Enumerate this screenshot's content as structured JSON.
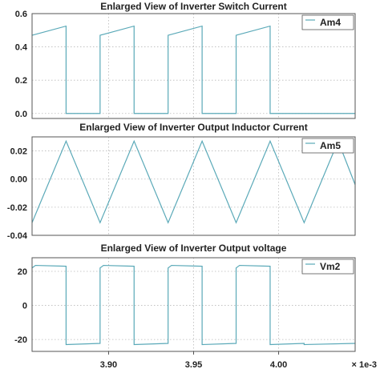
{
  "style": {
    "trace_color": "#5aa9b8",
    "grid_color": "#b9b9b9",
    "frame_color": "#555555"
  },
  "x_axis": {
    "range": [
      0.003855,
      0.004045
    ],
    "ticks": [
      0.0039,
      0.00395,
      0.004
    ],
    "tick_labels": [
      "3.90",
      "3.95",
      "4.00"
    ],
    "scale_label": "× 1e-3"
  },
  "chart_data": [
    {
      "type": "line",
      "title": "Enlarged View of Inverter Switch Current",
      "ylim": [
        -0.03,
        0.6
      ],
      "yticks": [
        0.0,
        0.2,
        0.4,
        0.6
      ],
      "ytick_labels": [
        "0.0",
        "0.2",
        "0.4",
        "0.6"
      ],
      "grid": true,
      "legend": "top-right",
      "series": [
        {
          "name": "Am4",
          "x": [
            0.003855,
            0.003875,
            0.003875,
            0.003875,
            0.003895,
            0.003895,
            0.003895,
            0.003915,
            0.003915,
            0.003915,
            0.003935,
            0.003935,
            0.003935,
            0.003955,
            0.003955,
            0.003955,
            0.003975,
            0.003975,
            0.003975,
            0.003995,
            0.003995,
            0.003995,
            0.004015,
            0.004015,
            0.004015,
            0.004045
          ],
          "y": [
            0.47,
            0.525,
            0.525,
            0.0,
            0.0,
            0.0,
            0.47,
            0.525,
            0.525,
            0.0,
            0.0,
            0.0,
            0.47,
            0.525,
            0.525,
            0.0,
            0.0,
            0.0,
            0.47,
            0.525,
            0.525,
            0.0,
            0.0,
            0.0,
            0.0,
            0.0
          ]
        }
      ]
    },
    {
      "type": "line",
      "title": "Enlarged View of Inverter Output Inductor Current",
      "ylim": [
        -0.04,
        0.03
      ],
      "yticks": [
        -0.04,
        -0.02,
        0.0,
        0.02
      ],
      "ytick_labels": [
        "-0.04",
        "-0.02",
        "0.00",
        "0.02"
      ],
      "grid": true,
      "legend": "top-right",
      "series": [
        {
          "name": "Am5",
          "x": [
            0.003855,
            0.003875,
            0.003895,
            0.003915,
            0.003935,
            0.003955,
            0.003975,
            0.003995,
            0.004015,
            0.004035,
            0.004045
          ],
          "y": [
            -0.031,
            0.027,
            -0.031,
            0.027,
            -0.031,
            0.027,
            -0.031,
            0.027,
            -0.031,
            0.027,
            -0.004
          ]
        }
      ]
    },
    {
      "type": "line",
      "title": "Enlarged View of Inverter Output voltage",
      "ylim": [
        -27,
        28
      ],
      "yticks": [
        -20,
        0,
        20
      ],
      "ytick_labels": [
        "-20",
        "0",
        "20"
      ],
      "grid": true,
      "legend": "top-right",
      "series": [
        {
          "name": "Vm2",
          "x": [
            0.003855,
            0.003857,
            0.003875,
            0.003875,
            0.003895,
            0.003895,
            0.003897,
            0.003915,
            0.003915,
            0.003935,
            0.003935,
            0.003937,
            0.003955,
            0.003955,
            0.003975,
            0.003975,
            0.003977,
            0.003995,
            0.003995,
            0.004015,
            0.004015,
            0.004045
          ],
          "y": [
            22.0,
            23.5,
            23.0,
            -23.0,
            -22.3,
            22.0,
            23.5,
            23.0,
            -23.0,
            -22.3,
            22.0,
            23.5,
            23.0,
            -23.0,
            -22.3,
            22.0,
            23.5,
            23.0,
            -23.0,
            -22.3,
            -23.0,
            -22.3
          ]
        }
      ]
    }
  ]
}
